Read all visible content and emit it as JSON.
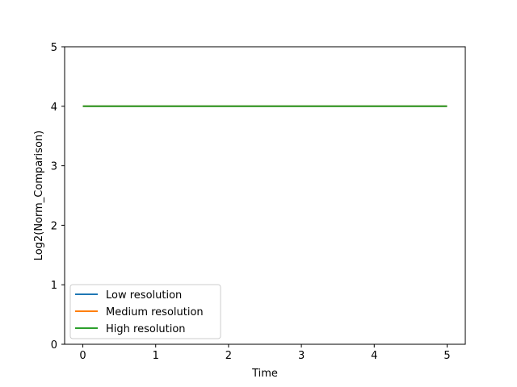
{
  "chart_data": {
    "type": "line",
    "title": "",
    "xlabel": "Time",
    "ylabel": "Log2(Norm_Comparison)",
    "xlim": [
      -0.25,
      5.25
    ],
    "ylim": [
      0,
      5
    ],
    "xticks": [
      0,
      1,
      2,
      3,
      4,
      5
    ],
    "yticks": [
      0,
      1,
      2,
      3,
      4,
      5
    ],
    "xtick_labels": [
      "0",
      "1",
      "2",
      "3",
      "4",
      "5"
    ],
    "ytick_labels": [
      "0",
      "1",
      "2",
      "3",
      "4",
      "5"
    ],
    "grid": false,
    "legend_position": "lower-left",
    "series": [
      {
        "name": "Low resolution",
        "color": "#1f77b4",
        "x": [
          0,
          5
        ],
        "y": [
          4,
          4
        ]
      },
      {
        "name": "Medium resolution",
        "color": "#ff7f0e",
        "x": [
          0,
          5
        ],
        "y": [
          4,
          4
        ]
      },
      {
        "name": "High resolution",
        "color": "#2ca02c",
        "x": [
          0,
          5
        ],
        "y": [
          4,
          4
        ]
      }
    ]
  }
}
